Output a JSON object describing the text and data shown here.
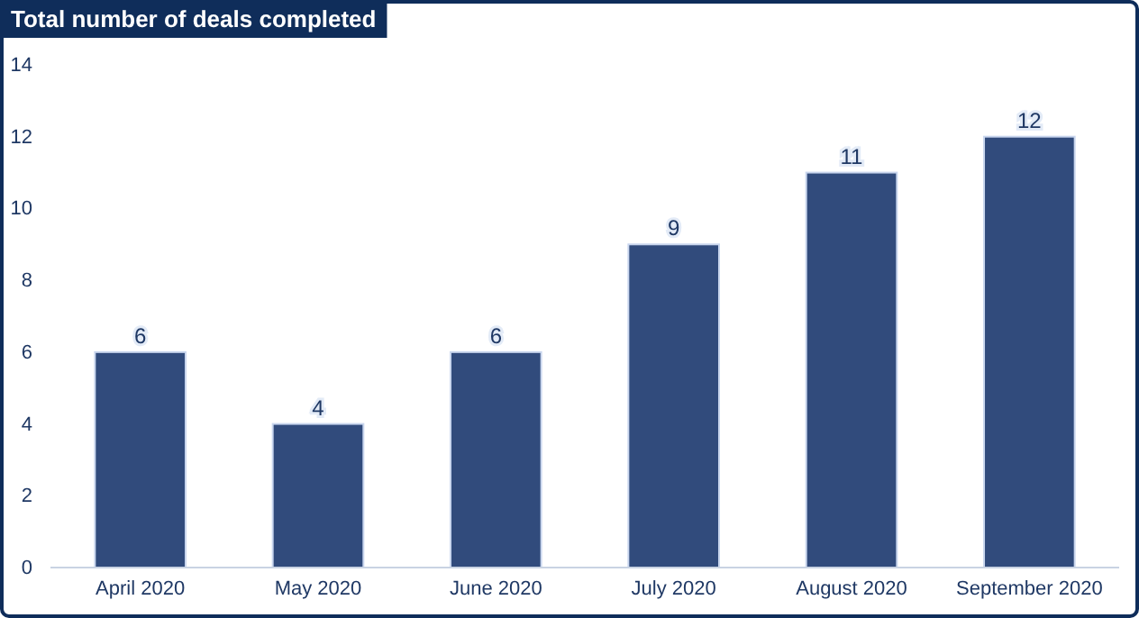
{
  "chart_data": {
    "type": "bar",
    "title": "Total number of deals completed",
    "categories": [
      "April 2020",
      "May 2020",
      "June 2020",
      "July 2020",
      "August 2020",
      "September 2020"
    ],
    "values": [
      6,
      4,
      6,
      9,
      11,
      12
    ],
    "color": "#314b7c",
    "ylim": [
      0,
      14
    ],
    "yticks": [
      0,
      2,
      4,
      6,
      8,
      10,
      12,
      14
    ],
    "grid": false,
    "data_labels": true
  }
}
